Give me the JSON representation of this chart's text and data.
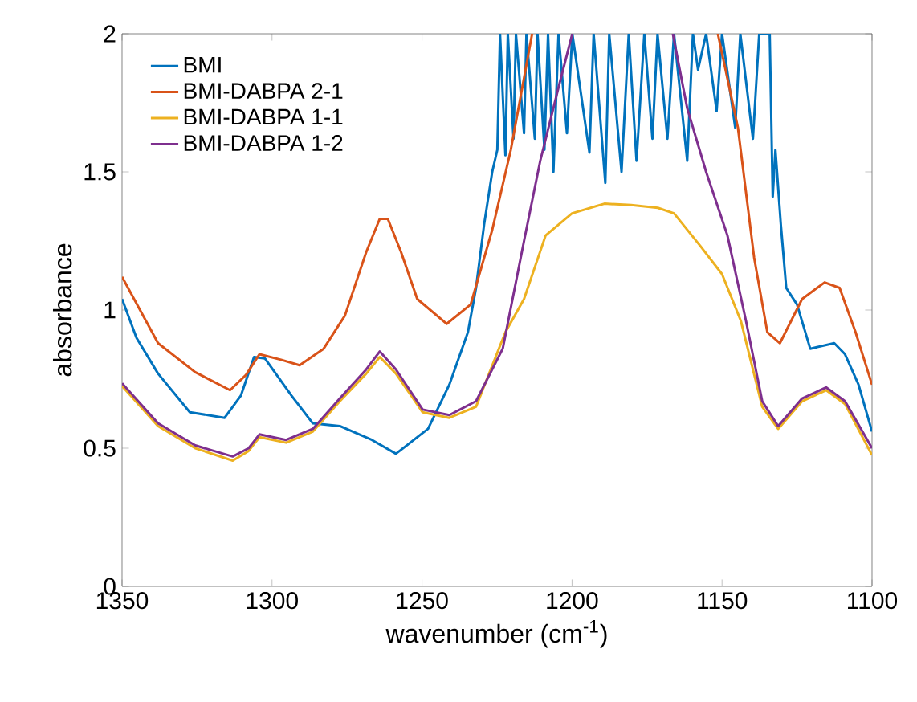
{
  "chart_data": {
    "type": "line",
    "xlabel": "wavenumber (cm$^{-1}$)",
    "ylabel": "absorbance",
    "xlim": [
      1350,
      1100
    ],
    "ylim": [
      0,
      2
    ],
    "xticks": [
      1350,
      1300,
      1250,
      1200,
      1150,
      1100
    ],
    "yticks": [
      0,
      0.5,
      1,
      1.5,
      2
    ],
    "grid": false,
    "legend": "top left",
    "marker": "none",
    "line_style": "solid",
    "series": [
      {
        "name": "BMI",
        "color": "#0072bd",
        "x": [
          1350,
          1345.2,
          1338,
          1327.4,
          1315.8,
          1310.4,
          1306,
          1302.4,
          1293.5,
          1286.4,
          1277.4,
          1266.7,
          1258.7,
          1248,
          1240.9,
          1234.7,
          1232,
          1229.3,
          1226.6,
          1224.9,
          1224,
          1222.2,
          1221.4,
          1219.5,
          1218.7,
          1216,
          1215.2,
          1212.4,
          1211.5,
          1209.2,
          1208,
          1206.2,
          1204.5,
          1201.7,
          1199.9,
          1194.2,
          1192.8,
          1188.9,
          1187.6,
          1183.5,
          1181.1,
          1178.5,
          1175.9,
          1173.2,
          1171.5,
          1168.2,
          1166,
          1161.6,
          1159.7,
          1158,
          1155.3,
          1151.8,
          1150,
          1145.6,
          1143.9,
          1139.7,
          1137.6,
          1134.1,
          1133.1,
          1132.2,
          1130.4,
          1128.6,
          1125,
          1120.6,
          1112.6,
          1109,
          1104.5,
          1100
        ],
        "values": [
          1.04,
          0.9,
          0.77,
          0.63,
          0.61,
          0.69,
          0.83,
          0.825,
          0.69,
          0.59,
          0.58,
          0.53,
          0.48,
          0.57,
          0.73,
          0.92,
          1.08,
          1.31,
          1.5,
          1.58,
          2,
          1.56,
          2,
          1.62,
          2,
          1.64,
          2,
          1.62,
          2,
          1.58,
          2,
          1.5,
          2,
          1.64,
          2,
          1.57,
          2,
          1.46,
          2,
          1.5,
          2,
          1.54,
          2,
          1.62,
          2,
          1.62,
          2,
          1.54,
          2,
          1.87,
          2,
          1.72,
          2,
          1.66,
          2,
          1.62,
          2,
          2,
          1.41,
          1.58,
          1.31,
          1.08,
          1.02,
          0.86,
          0.88,
          0.84,
          0.73,
          0.56
        ]
      },
      {
        "name": "BMI-DABPA 2-1",
        "color": "#d95319",
        "x": [
          1350,
          1338,
          1325.6,
          1314,
          1308.7,
          1304.2,
          1297,
          1290.8,
          1282.8,
          1275.7,
          1268.6,
          1264.1,
          1261.4,
          1257,
          1251.6,
          1241.8,
          1233.8,
          1226.6,
          1220.4,
          1213.3,
          1180,
          1151.4,
          1144.7,
          1139.3,
          1134.9,
          1130.7,
          1123.3,
          1115.8,
          1110.8,
          1105.5,
          1100
        ],
        "values": [
          1.12,
          0.88,
          0.775,
          0.71,
          0.765,
          0.84,
          0.82,
          0.8,
          0.86,
          0.98,
          1.21,
          1.33,
          1.33,
          1.21,
          1.04,
          0.95,
          1.02,
          1.29,
          1.58,
          2,
          null,
          2,
          1.66,
          1.19,
          0.92,
          0.88,
          1.04,
          1.1,
          1.08,
          0.92,
          0.73
        ]
      },
      {
        "name": "BMI-DABPA 1-1",
        "color": "#edb120",
        "x": [
          1350,
          1338,
          1325.6,
          1313.1,
          1307.8,
          1304.2,
          1295.3,
          1286.4,
          1277.4,
          1268.6,
          1264.1,
          1258.7,
          1249.8,
          1240.9,
          1232,
          1222.2,
          1216,
          1208.8,
          1200,
          1189.2,
          1180.3,
          1171.4,
          1166,
          1157.1,
          1150,
          1143.7,
          1136.6,
          1131.3,
          1123.3,
          1115.3,
          1109,
          1100
        ],
        "values": [
          0.725,
          0.58,
          0.5,
          0.455,
          0.49,
          0.54,
          0.52,
          0.56,
          0.67,
          0.77,
          0.83,
          0.77,
          0.63,
          0.61,
          0.65,
          0.92,
          1.04,
          1.27,
          1.35,
          1.385,
          1.38,
          1.37,
          1.35,
          1.23,
          1.13,
          0.96,
          0.65,
          0.57,
          0.67,
          0.71,
          0.66,
          0.475
        ]
      },
      {
        "name": "BMI-DABPA 1-2",
        "color": "#7e2f8e",
        "x": [
          1350,
          1338,
          1325.6,
          1313.1,
          1307.8,
          1304.2,
          1295.3,
          1286.4,
          1277.4,
          1268.6,
          1264.1,
          1258.7,
          1249.8,
          1240.9,
          1232,
          1223.1,
          1216,
          1210.6,
          1204.4,
          1199.9,
          1180,
          1166.4,
          1161.6,
          1155.3,
          1148.2,
          1142,
          1136.6,
          1131.3,
          1123.3,
          1115.3,
          1109,
          1100
        ],
        "values": [
          0.735,
          0.59,
          0.51,
          0.47,
          0.5,
          0.55,
          0.53,
          0.57,
          0.68,
          0.785,
          0.85,
          0.785,
          0.64,
          0.62,
          0.67,
          0.86,
          1.25,
          1.54,
          1.81,
          2,
          null,
          2,
          1.73,
          1.5,
          1.27,
          0.96,
          0.67,
          0.58,
          0.68,
          0.72,
          0.67,
          0.5
        ]
      }
    ]
  }
}
